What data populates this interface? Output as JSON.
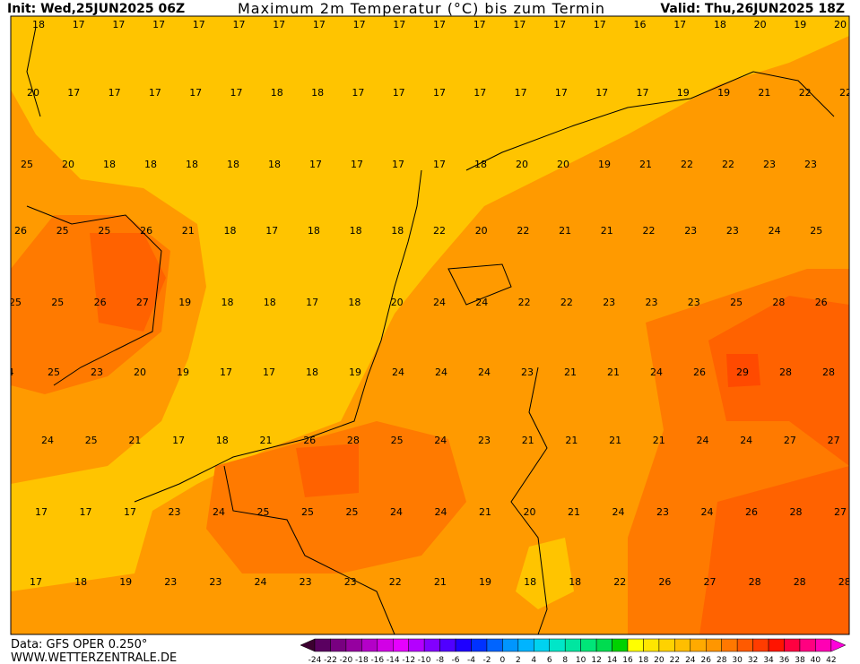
{
  "header": {
    "init": "Init: Wed,25JUN2025 06Z",
    "title": "Maximum 2m Temperatur (°C) bis zum Termin",
    "valid": "Valid: Thu,26JUN2025 18Z"
  },
  "footer": {
    "source": "Data: GFS OPER 0.250°",
    "website": "WWW.WETTERZENTRALE.DE"
  },
  "map": {
    "rows": [
      [
        18,
        17,
        17,
        17,
        17,
        17,
        17,
        17,
        17,
        17,
        17,
        17,
        17,
        17,
        17,
        16,
        17,
        18,
        20,
        19,
        20
      ],
      [
        20,
        17,
        17,
        17,
        17,
        17,
        18,
        18,
        17,
        17,
        17,
        17,
        17,
        17,
        17,
        17,
        19,
        19,
        21,
        22,
        22
      ],
      [
        25,
        20,
        18,
        18,
        18,
        18,
        18,
        17,
        17,
        17,
        17,
        18,
        20,
        20,
        19,
        21,
        22,
        22,
        23,
        23
      ],
      [
        26,
        25,
        25,
        26,
        21,
        18,
        17,
        18,
        18,
        18,
        22,
        20,
        22,
        21,
        21,
        22,
        23,
        23,
        24,
        25
      ],
      [
        25,
        25,
        26,
        27,
        19,
        18,
        18,
        17,
        18,
        20,
        24,
        24,
        22,
        22,
        23,
        23,
        23,
        25,
        28,
        26
      ],
      [
        4,
        25,
        23,
        20,
        19,
        17,
        17,
        18,
        19,
        24,
        24,
        24,
        23,
        21,
        21,
        24,
        26,
        29,
        28,
        28
      ],
      [
        24,
        25,
        21,
        17,
        18,
        21,
        26,
        28,
        25,
        24,
        23,
        21,
        21,
        21,
        21,
        24,
        24,
        27,
        27
      ],
      [
        17,
        17,
        17,
        23,
        24,
        25,
        25,
        25,
        24,
        24,
        21,
        20,
        21,
        24,
        23,
        24,
        26,
        28,
        27
      ],
      [
        17,
        18,
        19,
        23,
        23,
        24,
        23,
        23,
        22,
        21,
        19,
        18,
        18,
        22,
        26,
        27,
        28,
        28,
        28
      ]
    ]
  },
  "colorbar": {
    "labels": [
      -24,
      -22,
      -20,
      -18,
      -16,
      -14,
      -12,
      -10,
      -8,
      -6,
      -4,
      -2,
      0,
      2,
      4,
      6,
      8,
      10,
      12,
      14,
      16,
      18,
      20,
      22,
      24,
      26,
      28,
      30,
      32,
      34,
      36,
      38,
      40,
      42
    ],
    "colors": [
      "#3c0030",
      "#5a0060",
      "#780080",
      "#9600a0",
      "#b400c8",
      "#d200e6",
      "#e600ff",
      "#b400ff",
      "#8200ff",
      "#5000ff",
      "#1e00ff",
      "#0032ff",
      "#0064ff",
      "#0096ff",
      "#00b4ff",
      "#00d2f0",
      "#00e6c8",
      "#00e6a0",
      "#00e678",
      "#00dc50",
      "#00d200",
      "#ffff00",
      "#ffe600",
      "#ffd200",
      "#ffbe00",
      "#ffaa00",
      "#ff9600",
      "#ff7800",
      "#ff5a00",
      "#ff3c00",
      "#ff1400",
      "#ff0040",
      "#ff0080",
      "#ff00b4",
      "#ff00dc"
    ]
  }
}
